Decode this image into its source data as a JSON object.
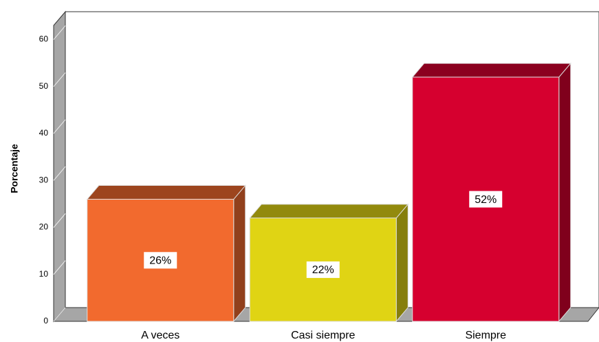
{
  "chart_data": {
    "type": "bar3d",
    "y_label": "Porcentaje",
    "categories": [
      "A veces",
      "Casi siempre",
      "Siempre"
    ],
    "values": [
      26,
      22,
      52
    ],
    "value_labels": [
      "26%",
      "22%",
      "52%"
    ],
    "colors": [
      "#f26a2e",
      "#e0d414",
      "#d6002f"
    ],
    "ylim": [
      0,
      63
    ],
    "yticks": [
      0,
      10,
      20,
      30,
      40,
      50,
      60
    ]
  }
}
